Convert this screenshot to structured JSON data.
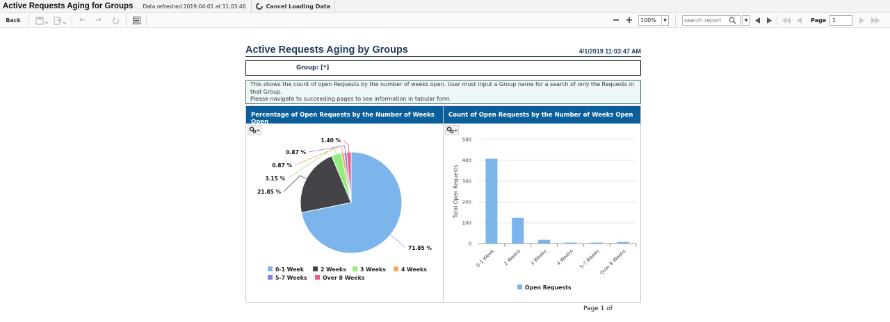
{
  "header": {
    "app_title": "Active Requests Aging for Groups",
    "refreshed": "Data refreshed 2019-04-01 at 11:03:46",
    "cancel_label": "Cancel Loading Data"
  },
  "toolbar": {
    "back_label": "Back",
    "zoom_value": "100%",
    "search_placeholder": "search report",
    "page_label": "Page",
    "page_value": "1",
    "zoom_out": "−",
    "zoom_in": "+"
  },
  "report": {
    "title": "Active Requests Aging by Groups",
    "date": "4/1/2019 11:03:47 AM",
    "param_label": "Group:",
    "param_value": "[*]",
    "description_line1": "This shows the count of open Requests by the number of weeks open. User must input a Group name for a search of only the Requests in that Group.",
    "description_line2": "Please navigate to succeeding pages to see information in tabular form.",
    "footer": "Page 1 of"
  },
  "charts": {
    "pie_title": "Percentage of Open Requests by the Number of Weeks Open",
    "bar_title": "Count of Open Requests by the Number of Weeks Open"
  },
  "colors": {
    "header_blue": "#0a5f9a",
    "title_navy": "#1f3b5a"
  },
  "chart_data": [
    {
      "type": "pie",
      "title": "Percentage of Open Requests by the Number of Weeks Open",
      "categories": [
        "0-1 Week",
        "2 Weeks",
        "3 Weeks",
        "4 Weeks",
        "5-7 Weeks",
        "Over 8 Weeks"
      ],
      "values": [
        71.85,
        21.85,
        3.15,
        0.87,
        0.87,
        1.4
      ],
      "labels": [
        "71.85 %",
        "21.85 %",
        "3.15 %",
        "0.87 %",
        "0.87 %",
        "1.40 %"
      ],
      "colors": [
        "#7cb5ec",
        "#434348",
        "#90ed7d",
        "#f7a35c",
        "#8085e9",
        "#f15c80"
      ],
      "legend": "bottom"
    },
    {
      "type": "bar",
      "title": "Count of Open Requests by the Number of Weeks Open",
      "categories": [
        "0-1 Week",
        "2 Weeks",
        "3 Weeks",
        "4 Weeks",
        "5-7 Weeks",
        "Over 8 Weeks"
      ],
      "series": [
        {
          "name": "Open Requests",
          "values": [
            408,
            124,
            18,
            5,
            5,
            8
          ],
          "color": "#7cb5ec"
        }
      ],
      "ylabel": "Total Open Requests",
      "yticks": [
        0,
        100,
        200,
        300,
        400,
        500
      ],
      "ylim": [
        0,
        500
      ],
      "grid": true,
      "legend": "bottom"
    }
  ]
}
